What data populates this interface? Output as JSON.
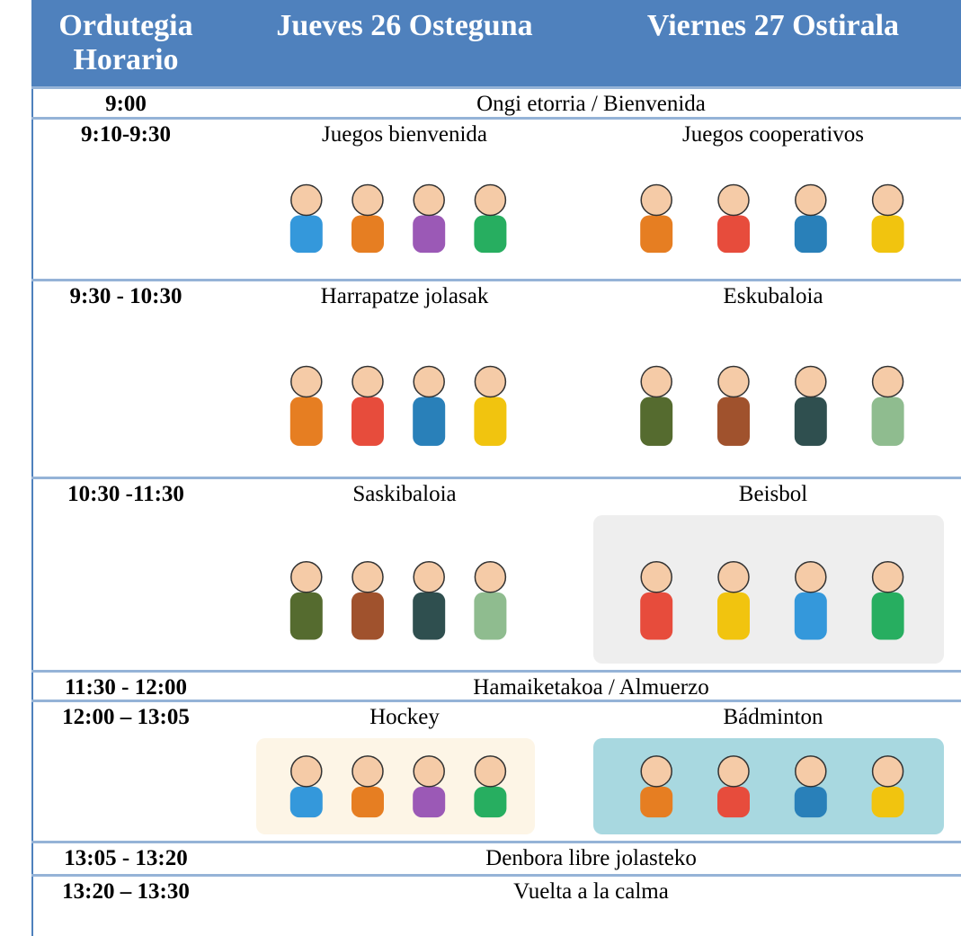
{
  "header": {
    "schedule": [
      "Ordutegia",
      "Horario"
    ],
    "thursday": "Jueves 26 Osteguna",
    "friday": "Viernes 27 Ostirala"
  },
  "rows": [
    {
      "time": "9:00",
      "all": "Ongi etorria / Bienvenida"
    },
    {
      "time": "9:10-9:30",
      "thursday": "Juegos bienvenida",
      "friday": "Juegos cooperativos"
    },
    {
      "time": "9:30 - 10:30",
      "thursday": "Harrapatze jolasak",
      "friday": "Eskubaloia"
    },
    {
      "time": "10:30 -11:30",
      "thursday": "Saskibaloia",
      "friday": "Beisbol"
    },
    {
      "time": "11:30 - 12:00",
      "all": "Hamaiketakoa / Almuerzo"
    },
    {
      "time": "12:00 – 13:05",
      "thursday": "Hockey",
      "friday": "Bádminton"
    },
    {
      "time": "13:05 - 13:20",
      "all": "Denbora libre jolasteko"
    },
    {
      "time": "13:20 – 13:30",
      "all": "Vuelta a la calma"
    }
  ]
}
